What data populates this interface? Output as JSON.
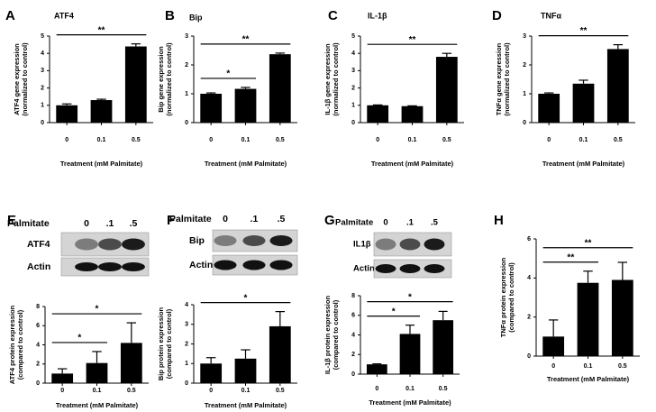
{
  "chart_data": [
    {
      "type": "bar",
      "panel": "A",
      "title": "ATF4",
      "ylabel": [
        "ATF4 gene expression",
        "(normalized to control)"
      ],
      "xlabel": "Treatment (mM Palmitate)",
      "categories": [
        "0",
        "0.1",
        "0.5"
      ],
      "values": [
        1.0,
        1.3,
        4.4
      ],
      "errors": [
        0.08,
        0.05,
        0.15
      ],
      "color": "#000000",
      "ylim": [
        0,
        5
      ],
      "yticks": [
        0,
        1,
        2,
        3,
        4,
        5
      ],
      "annotations": [
        {
          "text": "**",
          "between": [
            "0",
            "0.5"
          ]
        }
      ]
    },
    {
      "type": "bar",
      "panel": "B",
      "title": "Bip",
      "ylabel": [
        "Bip gene expression",
        "(normalized to control)"
      ],
      "xlabel": "Treatment (mM Palmitate)",
      "categories": [
        "0",
        "0.1",
        "0.5"
      ],
      "values": [
        1.0,
        1.17,
        2.37
      ],
      "errors": [
        0.03,
        0.05,
        0.04
      ],
      "color": "#000000",
      "ylim": [
        0,
        3
      ],
      "yticks": [
        0,
        1,
        2,
        3
      ],
      "annotations": [
        {
          "text": "*",
          "between": [
            "0",
            "0.1"
          ]
        },
        {
          "text": "**",
          "between": [
            "0",
            "0.5"
          ]
        }
      ]
    },
    {
      "type": "bar",
      "panel": "C",
      "title": "IL-1β",
      "ylabel": [
        "IL-1β gene expression",
        "(normalized to control)"
      ],
      "xlabel": "Treatment (mM Palmitate)",
      "categories": [
        "0",
        "0.1",
        "0.5"
      ],
      "values": [
        1.0,
        0.95,
        3.8
      ],
      "errors": [
        0.02,
        0.02,
        0.2
      ],
      "color": "#000000",
      "ylim": [
        0,
        5
      ],
      "yticks": [
        0,
        1,
        2,
        3,
        4,
        5
      ],
      "annotations": [
        {
          "text": "**",
          "between": [
            "0",
            "0.5"
          ]
        }
      ]
    },
    {
      "type": "bar",
      "panel": "D",
      "title": "TNFα",
      "ylabel": [
        "TNFα gene expression",
        "(normalized to control)"
      ],
      "xlabel": "Treatment (mM Palmitate)",
      "categories": [
        "0",
        "0.1",
        "0.5"
      ],
      "values": [
        1.0,
        1.35,
        2.55
      ],
      "errors": [
        0.03,
        0.12,
        0.15
      ],
      "color": "#000000",
      "ylim": [
        0,
        3
      ],
      "yticks": [
        0,
        1,
        2,
        3
      ],
      "annotations": [
        {
          "text": "**",
          "between": [
            "0",
            "0.5"
          ]
        }
      ]
    },
    {
      "type": "bar",
      "panel": "E",
      "blot": {
        "treatment": "Palmitate",
        "lanes": [
          "0",
          ".1",
          ".5"
        ],
        "bands": [
          "ATF4",
          "Actin"
        ]
      },
      "ylabel": [
        "ATF4 protein expression",
        "(compared to control)"
      ],
      "xlabel": "Treatment (mM Palmitate)",
      "categories": [
        "0",
        "0.1",
        "0.5"
      ],
      "values": [
        1.0,
        2.1,
        4.2
      ],
      "errors": [
        0.5,
        1.2,
        2.1
      ],
      "color": "#000000",
      "ylim": [
        0,
        8
      ],
      "yticks": [
        0,
        2,
        4,
        6,
        8
      ],
      "annotations": [
        {
          "text": "*",
          "between": [
            "0",
            "0.1"
          ]
        },
        {
          "text": "*",
          "between": [
            "0",
            "0.5"
          ]
        }
      ]
    },
    {
      "type": "bar",
      "panel": "F",
      "blot": {
        "treatment": "Palmitate",
        "lanes": [
          "0",
          ".1",
          ".5"
        ],
        "bands": [
          "Bip",
          "Actin"
        ]
      },
      "ylabel": [
        "Bip protein expression",
        "(compared to control)"
      ],
      "xlabel": "Treatment (mM Palmitate)",
      "categories": [
        "0",
        "0.1",
        "0.5"
      ],
      "values": [
        1.0,
        1.25,
        2.9
      ],
      "errors": [
        0.3,
        0.45,
        0.75
      ],
      "color": "#000000",
      "ylim": [
        0,
        4
      ],
      "yticks": [
        0,
        1,
        2,
        3,
        4
      ],
      "annotations": [
        {
          "text": "*",
          "between": [
            "0",
            "0.5"
          ]
        }
      ]
    },
    {
      "type": "bar",
      "panel": "G",
      "blot": {
        "treatment": "Palmitate",
        "lanes": [
          "0",
          ".1",
          ".5"
        ],
        "bands": [
          "IL1β",
          "Actin"
        ]
      },
      "ylabel": [
        "IL-1β protein expression",
        "(compared to control)"
      ],
      "xlabel": "Treatment (mM Palmitate)",
      "categories": [
        "0",
        "0.1",
        "0.5"
      ],
      "values": [
        1.0,
        4.1,
        5.5
      ],
      "errors": [
        0.05,
        0.9,
        0.9
      ],
      "color": "#000000",
      "ylim": [
        0,
        8
      ],
      "yticks": [
        0,
        2,
        4,
        6,
        8
      ],
      "annotations": [
        {
          "text": "*",
          "between": [
            "0",
            "0.1"
          ]
        },
        {
          "text": "*",
          "between": [
            "0",
            "0.5"
          ]
        }
      ]
    },
    {
      "type": "bar",
      "panel": "H",
      "ylabel": [
        "TNFα protein expression",
        "(compared to control)"
      ],
      "xlabel": "Treatment (mM Palmitate)",
      "categories": [
        "0",
        "0.1",
        "0.5"
      ],
      "values": [
        1.0,
        3.75,
        3.9
      ],
      "errors": [
        0.85,
        0.6,
        0.9
      ],
      "color": "#000000",
      "ylim": [
        0,
        6
      ],
      "yticks": [
        0,
        2,
        4,
        6
      ],
      "annotations": [
        {
          "text": "**",
          "between": [
            "0",
            "0.1"
          ]
        },
        {
          "text": "**",
          "between": [
            "0",
            "0.5"
          ]
        }
      ]
    }
  ]
}
